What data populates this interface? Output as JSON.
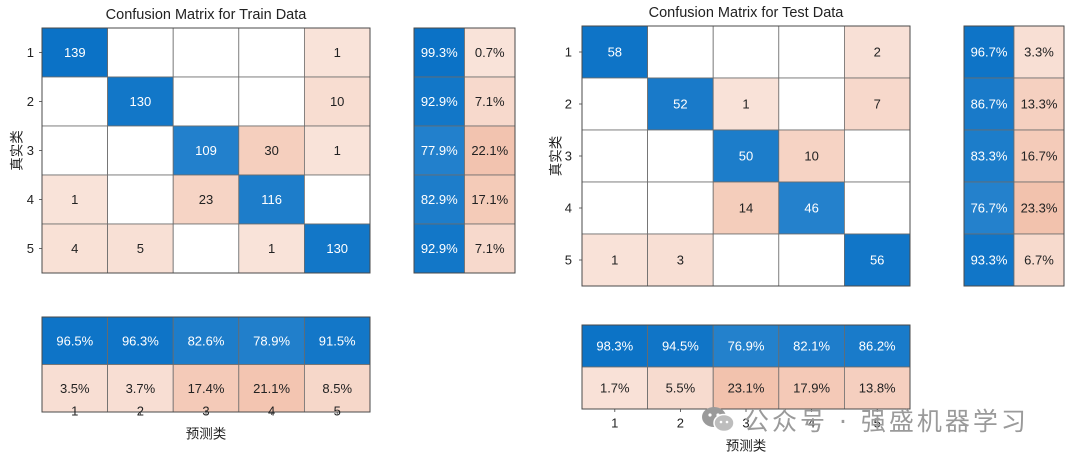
{
  "watermark": {
    "text": "公众号 · 强盛机器学习",
    "icon": "wechat-icon"
  },
  "colors": {
    "blue": "#0a72c6",
    "pink": "#f2c2ad",
    "white": "#ffffff"
  },
  "chart_data": [
    {
      "type": "heatmap",
      "title": "Confusion Matrix for Train Data",
      "xlabel": "预测类",
      "ylabel": "真实类",
      "classes": [
        "1",
        "2",
        "3",
        "4",
        "5"
      ],
      "matrix": [
        [
          139,
          0,
          0,
          0,
          1
        ],
        [
          0,
          130,
          0,
          0,
          10
        ],
        [
          0,
          0,
          109,
          30,
          1
        ],
        [
          1,
          0,
          23,
          116,
          0
        ],
        [
          4,
          5,
          0,
          1,
          130
        ]
      ],
      "row_summary": [
        [
          "99.3%",
          "0.7%"
        ],
        [
          "92.9%",
          "7.1%"
        ],
        [
          "77.9%",
          "22.1%"
        ],
        [
          "82.9%",
          "17.1%"
        ],
        [
          "92.9%",
          "7.1%"
        ]
      ],
      "col_summary": {
        "correct": [
          "96.5%",
          "96.3%",
          "82.6%",
          "78.9%",
          "91.5%"
        ],
        "incorrect": [
          "3.5%",
          "3.7%",
          "17.4%",
          "21.1%",
          "8.5%"
        ]
      }
    },
    {
      "type": "heatmap",
      "title": "Confusion Matrix for Test Data",
      "xlabel": "预测类",
      "ylabel": "真实类",
      "classes": [
        "1",
        "2",
        "3",
        "4",
        "5"
      ],
      "matrix": [
        [
          58,
          0,
          0,
          0,
          2
        ],
        [
          0,
          52,
          1,
          0,
          7
        ],
        [
          0,
          0,
          50,
          10,
          0
        ],
        [
          0,
          0,
          14,
          46,
          0
        ],
        [
          1,
          3,
          0,
          0,
          56
        ]
      ],
      "row_summary": [
        [
          "96.7%",
          "3.3%"
        ],
        [
          "86.7%",
          "13.3%"
        ],
        [
          "83.3%",
          "16.7%"
        ],
        [
          "76.7%",
          "23.3%"
        ],
        [
          "93.3%",
          "6.7%"
        ]
      ],
      "col_summary": {
        "correct": [
          "98.3%",
          "94.5%",
          "76.9%",
          "82.1%",
          "86.2%"
        ],
        "incorrect": [
          "1.7%",
          "5.5%",
          "23.1%",
          "17.9%",
          "13.8%"
        ]
      }
    }
  ]
}
